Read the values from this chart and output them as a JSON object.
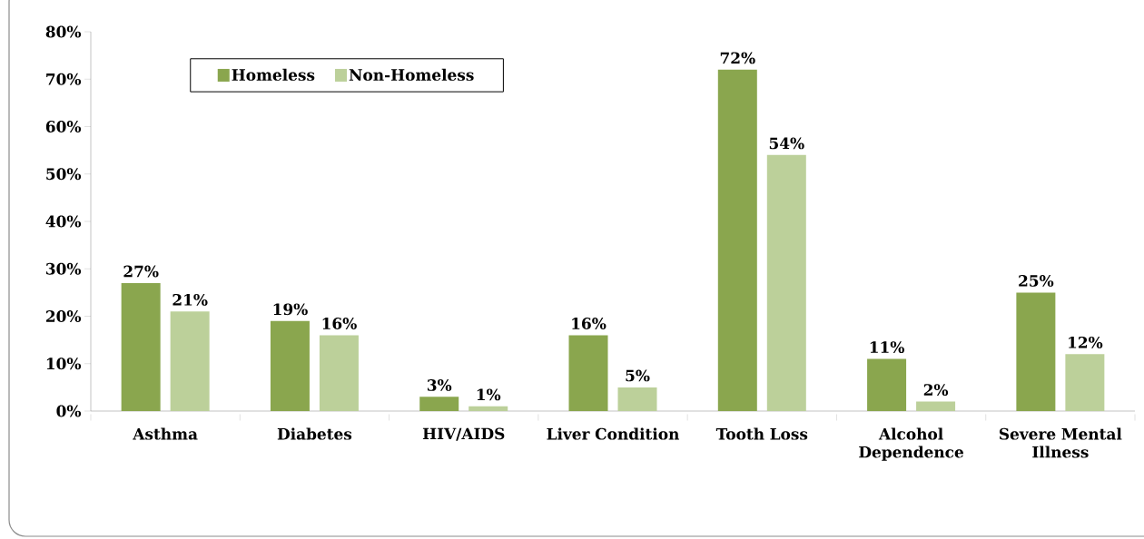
{
  "chart_data": {
    "type": "bar",
    "categories": [
      "Asthma",
      "Diabetes",
      "HIV/AIDS",
      "Liver Condition",
      "Tooth Loss",
      "Alcohol Dependence",
      "Severe Mental Illness"
    ],
    "series": [
      {
        "name": "Homeless",
        "color": "#8aa64e",
        "values": [
          27,
          19,
          3,
          16,
          72,
          11,
          25
        ],
        "value_labels": [
          "27%",
          "19%",
          "3%",
          "16%",
          "72%",
          "11%",
          "25%"
        ]
      },
      {
        "name": "Non-Homeless",
        "color": "#bcd09a",
        "values": [
          21,
          16,
          1,
          5,
          54,
          2,
          12
        ],
        "value_labels": [
          "21%",
          "16%",
          "1%",
          "5%",
          "54%",
          "2%",
          "12%"
        ]
      }
    ],
    "ylim": [
      0,
      80
    ],
    "yticks": [
      {
        "value": 0,
        "label": "0%"
      },
      {
        "value": 10,
        "label": "10%"
      },
      {
        "value": 20,
        "label": "20%"
      },
      {
        "value": 30,
        "label": "30%"
      },
      {
        "value": 40,
        "label": "40%"
      },
      {
        "value": 50,
        "label": "50%"
      },
      {
        "value": 60,
        "label": "60%"
      },
      {
        "value": 70,
        "label": "70%"
      },
      {
        "value": 80,
        "label": "80%"
      }
    ],
    "legend": "top left",
    "grid": false
  }
}
